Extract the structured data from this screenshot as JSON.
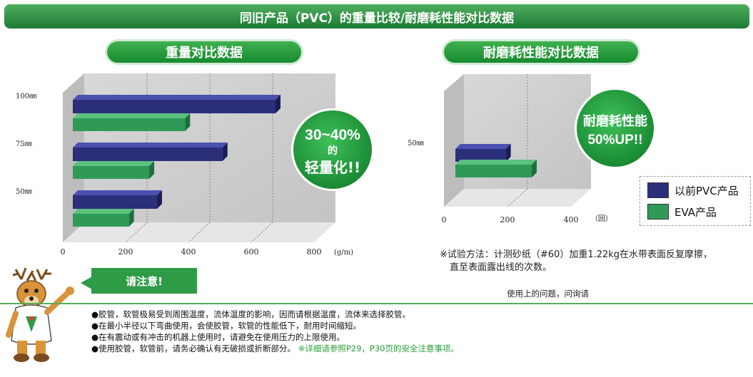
{
  "header": {
    "title": "同旧产品（PVC）的重量比较/耐磨耗性能对比数据"
  },
  "legend": {
    "pvc": "以前PVC产品",
    "eva": "EVA产品",
    "pvc_color": "#2b2f7a",
    "eva_color": "#2f9a58"
  },
  "chart_data": [
    {
      "type": "bar",
      "orientation": "horizontal",
      "title": "重量对比数据",
      "categories": [
        "100㎜",
        "75㎜",
        "50㎜"
      ],
      "series": [
        {
          "name": "以前PVC产品",
          "values": [
            650,
            480,
            270
          ]
        },
        {
          "name": "EVA产品",
          "values": [
            360,
            245,
            180
          ]
        }
      ],
      "x_ticks": [
        "0",
        "200",
        "400",
        "600",
        "800"
      ],
      "x_unit": "(g/m)",
      "xlim": [
        0,
        800
      ],
      "grid": true,
      "badge": {
        "line1": "30~40%",
        "line2": "的",
        "line3": "轻量化!!"
      }
    },
    {
      "type": "bar",
      "orientation": "horizontal",
      "title": "耐磨耗性能对比数据",
      "categories": [
        "50㎜"
      ],
      "series": [
        {
          "name": "以前PVC产品",
          "values": [
            165
          ]
        },
        {
          "name": "EVA产品",
          "values": [
            250
          ]
        }
      ],
      "x_ticks": [
        "0",
        "200",
        "400"
      ],
      "x_unit": "（回）",
      "xlim": [
        0,
        400
      ],
      "grid": true,
      "badge": {
        "line1": "耐磨耗性能",
        "line2": "50%UP!!"
      },
      "note_line1": "※试验方法：计测砂纸（#60）加重1.22kg在水带表面反复摩擦，",
      "note_line2": "直至表面露出线的次数。"
    }
  ],
  "inquiry": "使用上的问题，问询请",
  "caution": {
    "label": "请注意!",
    "items": [
      "●胶管，软管极易受到周围温度，流体温度的影响，因而请根据温度，流体来选择胶管。",
      "●在最小半径以下弯曲使用，会使胶管，软管的性能低下，耐用时间缩短。",
      "●在有震动或有冲击的机器上使用时，请避免在使用压力的上限使用。",
      "●使用胶管，软管前，请务必确认有无破损或折断部分。"
    ],
    "highlight": "※详细请参照P29，P30页的安全注意事项。"
  }
}
